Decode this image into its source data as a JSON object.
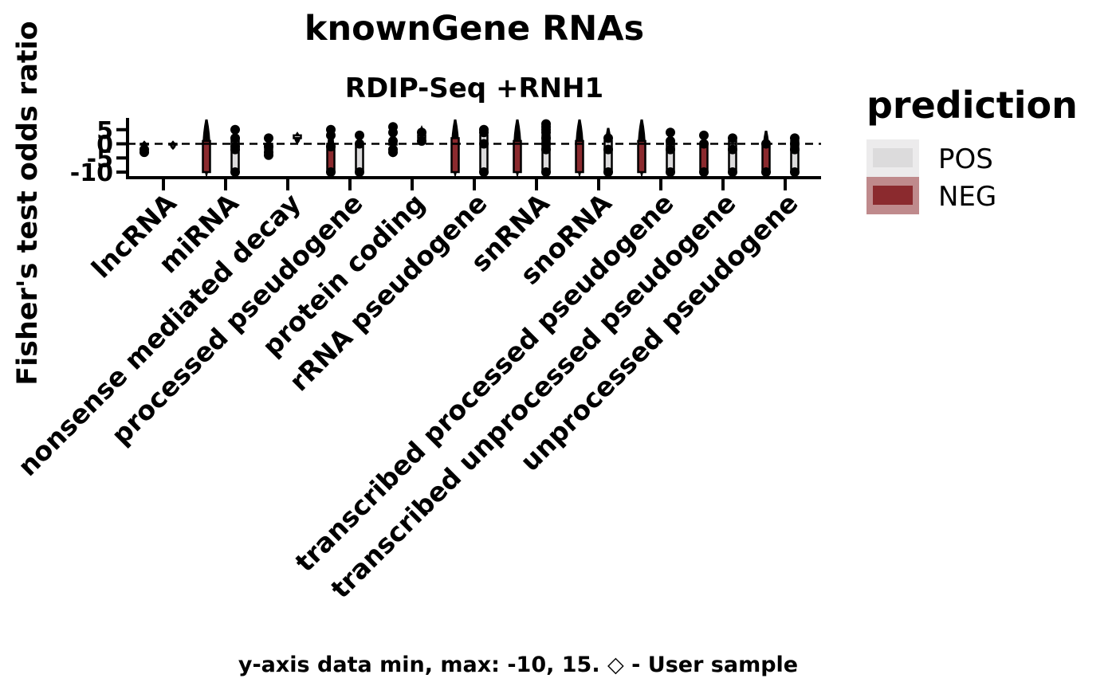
{
  "chart_data": {
    "type": "violin",
    "title": "knownGene RNAs",
    "subtitle": "RDIP-Seq +RNH1",
    "xlabel": "",
    "ylabel": "Fisher's test odds ratio",
    "caption": "y-axis data min, max: -10, 15. ◇ - User sample",
    "ylim": [
      -12,
      9
    ],
    "yticks": [
      {
        "value": 5,
        "label": "5"
      },
      {
        "value": 0,
        "label": "0"
      },
      {
        "value": -5,
        "label": "-5"
      },
      {
        "value": -10,
        "label": "-10"
      }
    ],
    "reference_line": 0,
    "grid": false,
    "legend": {
      "title": "prediction",
      "position": "right",
      "entries": [
        {
          "label": "POS",
          "color": "#dcdbdc"
        },
        {
          "label": "NEG",
          "color": "#8b2a2e"
        }
      ]
    },
    "categories": [
      "lncRNA",
      "miRNA",
      "nonsense mediated decay",
      "processed pseudogene",
      "protein coding",
      "rRNA pseudogene",
      "snRNA",
      "snoRNA",
      "transcribed processed pseudogene",
      "transcribed unprocessed pseudogene",
      "unprocessed pseudogene"
    ],
    "series": [
      {
        "name": "NEG",
        "color": "#8b2a2e",
        "values": [
          {
            "box": [
              -1,
              0,
              0,
              0,
              0
            ],
            "violin": [
              -1,
              0
            ],
            "outliers": [
              -2,
              -3
            ]
          },
          {
            "box": [
              -10,
              -10,
              0,
              1,
              7
            ],
            "violin": [
              -10,
              8
            ],
            "outliers": []
          },
          {
            "box": [
              -4,
              -2,
              0,
              0,
              1
            ],
            "violin": [
              -4,
              1
            ],
            "outliers": [
              -3,
              -4,
              -1,
              2
            ]
          },
          {
            "box": [
              -10,
              -10,
              0,
              0,
              5
            ],
            "violin": [
              -10,
              5
            ],
            "outliers": [
              -10,
              -1,
              3,
              5
            ]
          },
          {
            "box": [
              -3,
              0,
              0,
              0,
              5
            ],
            "violin": [
              -3,
              5
            ],
            "outliers": [
              -3,
              -2,
              1,
              4,
              6
            ]
          },
          {
            "box": [
              -10,
              -10,
              0,
              2,
              8
            ],
            "violin": [
              -10,
              8
            ],
            "outliers": []
          },
          {
            "box": [
              -10,
              -10,
              0,
              1,
              8
            ],
            "violin": [
              -10,
              8
            ],
            "outliers": []
          },
          {
            "box": [
              -10,
              -10,
              0,
              1,
              8
            ],
            "violin": [
              -10,
              8
            ],
            "outliers": []
          },
          {
            "box": [
              -10,
              -10,
              0,
              1,
              8
            ],
            "violin": [
              -10,
              8
            ],
            "outliers": []
          },
          {
            "box": [
              -10,
              -10,
              0,
              0,
              3
            ],
            "violin": [
              -10,
              3
            ],
            "outliers": [
              -10,
              0,
              3
            ]
          },
          {
            "box": [
              -10,
              -10,
              0,
              0,
              4
            ],
            "violin": [
              -10,
              4
            ],
            "outliers": [
              -10,
              0
            ]
          }
        ]
      },
      {
        "name": "POS",
        "color": "#dcdbdc",
        "values": [
          {
            "box": [
              0,
              0,
              0,
              0,
              0
            ],
            "violin": [
              -1,
              0
            ],
            "outliers": []
          },
          {
            "box": [
              -10,
              -10,
              0,
              2,
              5
            ],
            "violin": [
              -10,
              5
            ],
            "outliers": [
              -10,
              -2,
              -1,
              2,
              5
            ]
          },
          {
            "box": [
              1,
              2,
              2,
              3,
              3
            ],
            "violin": [
              1,
              3
            ],
            "outliers": []
          },
          {
            "box": [
              -10,
              -10,
              0,
              0,
              3
            ],
            "violin": [
              -10,
              3
            ],
            "outliers": [
              -10,
              0,
              3
            ]
          },
          {
            "box": [
              1,
              2,
              2,
              3,
              5
            ],
            "violin": [
              1,
              5
            ],
            "outliers": [
              1,
              4
            ]
          },
          {
            "box": [
              -10,
              -10,
              0,
              3,
              5
            ],
            "violin": [
              -10,
              5
            ],
            "outliers": [
              -10,
              0,
              4,
              5
            ]
          },
          {
            "box": [
              -10,
              -10,
              0,
              3,
              7
            ],
            "violin": [
              -10,
              7
            ],
            "outliers": [
              -10,
              -2,
              0,
              2,
              4,
              5,
              6,
              7
            ]
          },
          {
            "box": [
              -10,
              -10,
              -2,
              1,
              5
            ],
            "violin": [
              -10,
              5
            ],
            "outliers": [
              -10,
              -2,
              2
            ]
          },
          {
            "box": [
              -10,
              -10,
              0,
              1,
              4
            ],
            "violin": [
              -10,
              4
            ],
            "outliers": [
              -10,
              -2,
              1,
              4
            ]
          },
          {
            "box": [
              -10,
              -10,
              0,
              1,
              2
            ],
            "violin": [
              -10,
              2
            ],
            "outliers": [
              -10,
              -2,
              2
            ]
          },
          {
            "box": [
              -10,
              -10,
              0,
              1,
              3
            ],
            "violin": [
              -10,
              3
            ],
            "outliers": [
              -10,
              -2,
              0,
              2
            ]
          }
        ]
      }
    ]
  }
}
